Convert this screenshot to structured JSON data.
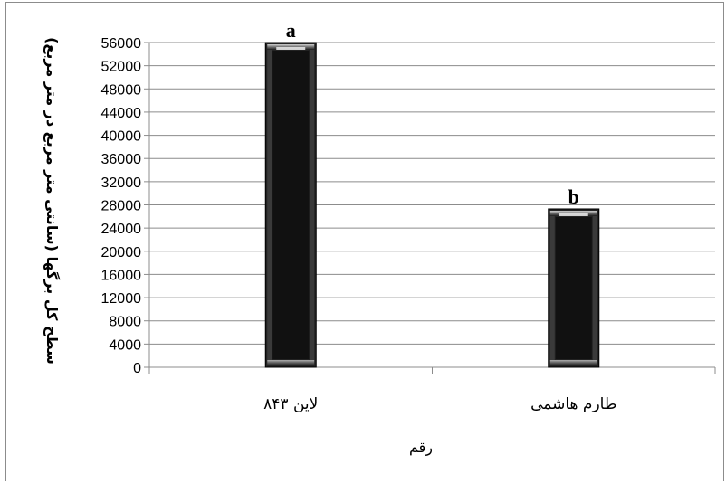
{
  "chart_data": {
    "type": "bar",
    "categories": [
      "لاین ۸۴۳",
      "طارم هاشمی"
    ],
    "values": [
      56000,
      27300
    ],
    "data_labels": [
      "a",
      "b"
    ],
    "title": "",
    "xlabel": "رقم",
    "ylabel": "سطح کل برگها (سانتی متر مربع در متر مربع)",
    "ylim": [
      0,
      56000
    ],
    "yticks": [
      0,
      4000,
      8000,
      12000,
      16000,
      20000,
      24000,
      28000,
      32000,
      36000,
      40000,
      44000,
      48000,
      52000,
      56000
    ],
    "grid": true,
    "legend": "none",
    "colors": {
      "bar": "#111111",
      "bar_bevel": "#7a7a7a",
      "grid": "#8c8c8c"
    }
  }
}
